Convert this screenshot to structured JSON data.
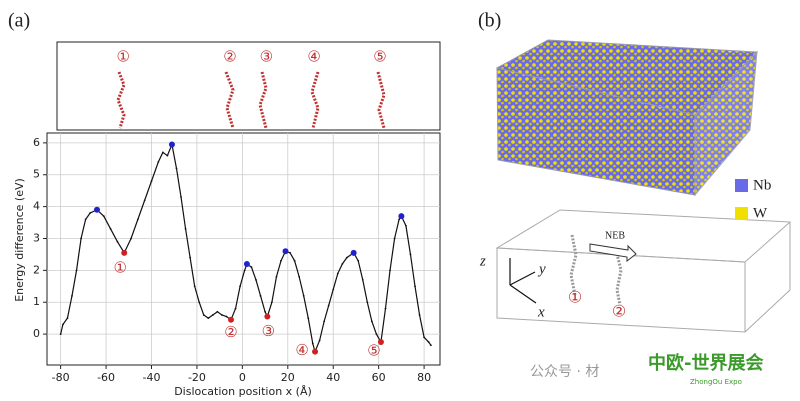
{
  "panel_a": {
    "label": "(a)",
    "top_labels": [
      "①",
      "②",
      "③",
      "④",
      "⑤"
    ]
  },
  "chart_data": {
    "type": "line",
    "color": "#111111",
    "x_label": "Dislocation position x (Å)",
    "y_label": "Energy difference (eV)",
    "x": [
      -80,
      -79,
      -77,
      -75,
      -73,
      -71,
      -69,
      -67,
      -64,
      -61,
      -58,
      -55,
      -52,
      -49,
      -46,
      -43,
      -40,
      -37,
      -35,
      -33,
      -31,
      -29,
      -27,
      -25,
      -23,
      -21,
      -19,
      -17,
      -15,
      -13,
      -11,
      -9,
      -7,
      -5,
      -3,
      -1,
      1,
      2,
      4,
      6,
      8,
      10,
      11,
      13,
      15,
      17,
      19,
      21,
      23,
      25,
      27,
      29,
      31,
      32,
      34,
      36,
      38,
      40,
      42,
      44,
      46,
      49,
      51,
      53,
      55,
      57,
      59,
      61,
      63,
      65,
      67,
      69,
      70,
      72,
      74,
      76,
      78,
      80,
      82,
      83
    ],
    "values": [
      0.0,
      0.3,
      0.5,
      1.2,
      2.0,
      3.0,
      3.6,
      3.8,
      3.9,
      3.7,
      3.3,
      2.9,
      2.55,
      3.0,
      3.6,
      4.2,
      4.8,
      5.4,
      5.7,
      5.6,
      5.95,
      5.2,
      4.3,
      3.3,
      2.4,
      1.5,
      1.0,
      0.6,
      0.5,
      0.6,
      0.7,
      0.6,
      0.55,
      0.45,
      0.8,
      1.5,
      2.0,
      2.2,
      2.1,
      1.7,
      1.2,
      0.7,
      0.55,
      1.0,
      1.8,
      2.3,
      2.6,
      2.55,
      2.3,
      1.8,
      1.2,
      0.5,
      -0.3,
      -0.55,
      -0.2,
      0.4,
      0.9,
      1.4,
      1.9,
      2.2,
      2.4,
      2.55,
      2.3,
      1.7,
      1.0,
      0.4,
      0.0,
      -0.25,
      0.8,
      2.0,
      3.0,
      3.6,
      3.7,
      3.4,
      2.5,
      1.5,
      0.6,
      -0.1,
      -0.25,
      -0.35
    ],
    "maxima": {
      "color": "#2222cc",
      "x": [
        -64,
        -31,
        2,
        19,
        49,
        70
      ],
      "values": [
        3.9,
        5.95,
        2.2,
        2.6,
        2.55,
        3.7
      ]
    },
    "minima": {
      "color": "#cc2222",
      "x": [
        -52,
        -5,
        11,
        32,
        61
      ],
      "values": [
        2.55,
        0.45,
        0.55,
        -0.55,
        -0.25
      ],
      "labels": [
        "①",
        "②",
        "③",
        "④",
        "⑤"
      ]
    },
    "xlim": [
      -86,
      87
    ],
    "ylim": [
      -0.97,
      6.31
    ],
    "xticks": [
      -80,
      -60,
      -40,
      -20,
      0,
      20,
      40,
      60,
      80
    ],
    "yticks": [
      0,
      1,
      2,
      3,
      4,
      5,
      6
    ],
    "grid": true
  },
  "panel_b": {
    "label": "(b)",
    "legend": [
      {
        "name": "Nb",
        "color": "#6a6ae6"
      },
      {
        "name": "W",
        "color": "#f0e000"
      }
    ],
    "axes": {
      "z": "z",
      "y": "y",
      "x": "x"
    },
    "arrow_label": "NEB",
    "positions": [
      "①",
      "②"
    ]
  },
  "watermark": {
    "text": "公众号 · 材",
    "logo": "中欧-世界展会",
    "logo_sub": "ZhongOu Expo"
  }
}
